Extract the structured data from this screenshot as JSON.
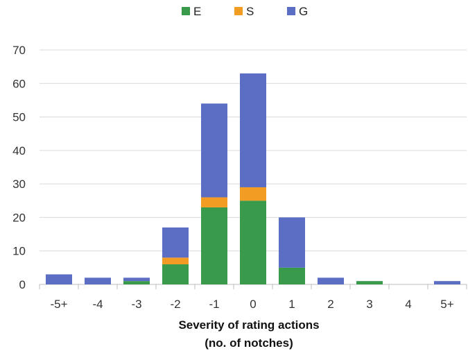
{
  "chart_data": {
    "type": "bar",
    "stacked": true,
    "categories": [
      "-5+",
      "-4",
      "-3",
      "-2",
      "-1",
      "0",
      "1",
      "2",
      "3",
      "4",
      "5+"
    ],
    "series": [
      {
        "name": "E",
        "color": "#3a9a4c",
        "values": [
          0,
          0,
          1,
          6,
          23,
          25,
          5,
          0,
          1,
          0,
          0
        ]
      },
      {
        "name": "S",
        "color": "#f29c23",
        "values": [
          0,
          0,
          0,
          2,
          3,
          4,
          0,
          0,
          0,
          0,
          0
        ]
      },
      {
        "name": "G",
        "color": "#5b6ec3",
        "values": [
          3,
          2,
          1,
          9,
          28,
          34,
          15,
          2,
          0,
          0,
          1
        ]
      }
    ],
    "xlabel_lines": [
      "Severity of rating actions",
      "(no. of notches)"
    ],
    "ylabel": "",
    "ylim": [
      0,
      70
    ],
    "yticks": [
      0,
      10,
      20,
      30,
      40,
      50,
      60,
      70
    ],
    "grid": true,
    "legend_position": "top-center"
  }
}
